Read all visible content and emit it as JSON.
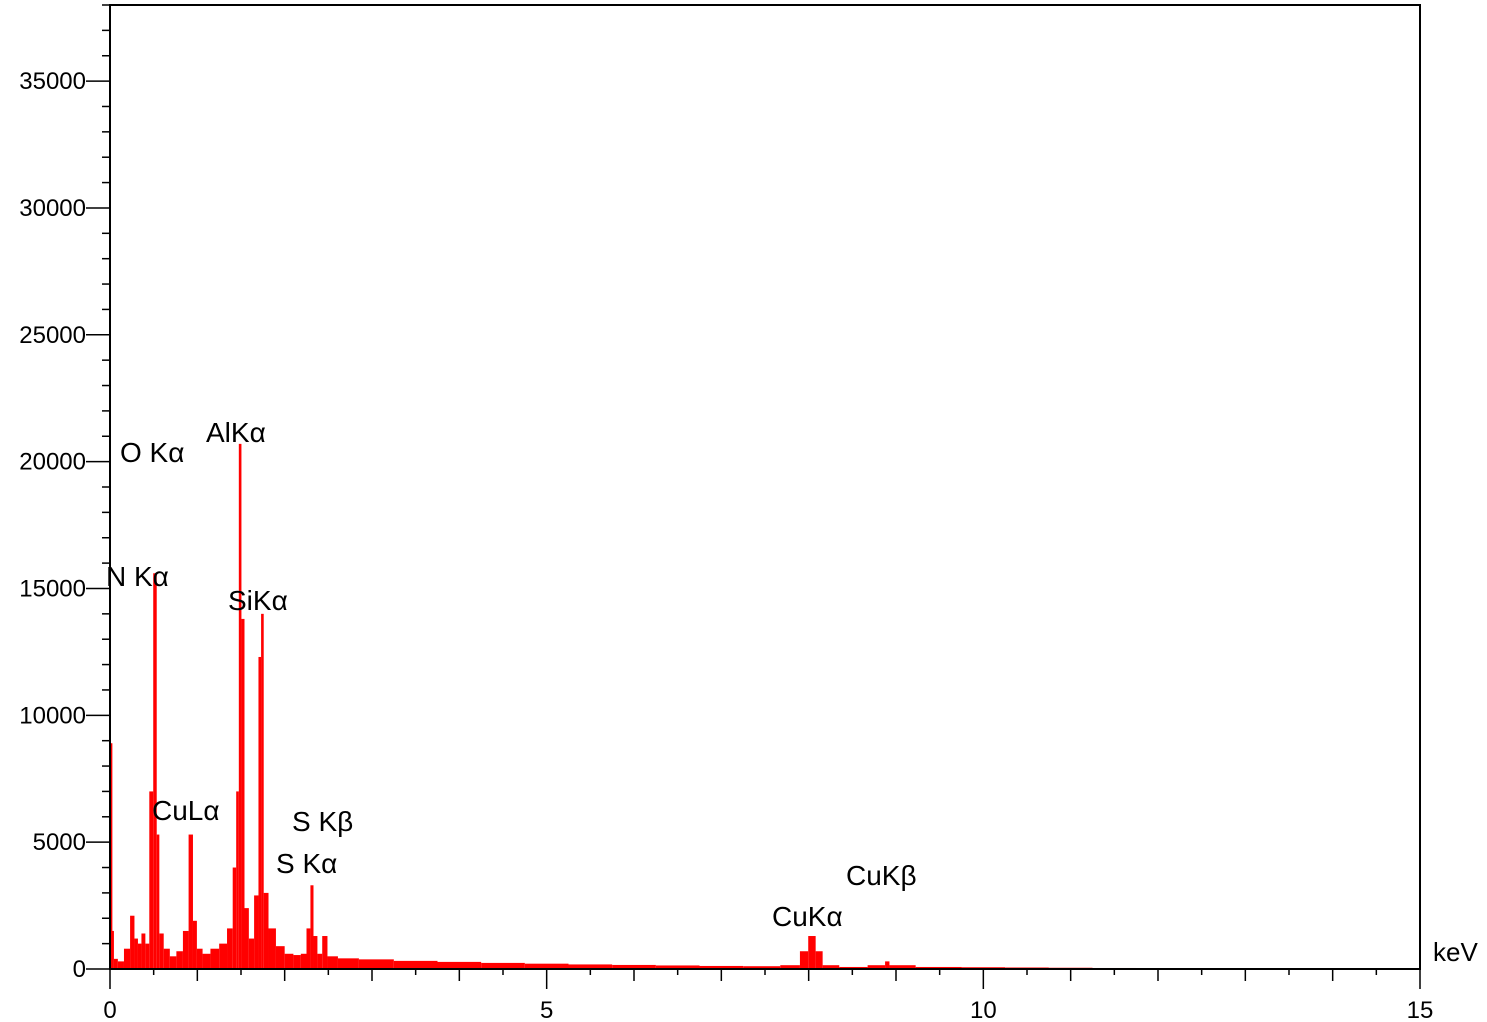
{
  "chart_data": {
    "type": "bar",
    "xlabel": "keV",
    "ylabel": "",
    "xlim": [
      0,
      15
    ],
    "ylim": [
      0,
      38000
    ],
    "x_ticks": [
      "0",
      "5",
      "10",
      "15"
    ],
    "y_ticks": [
      "0",
      "5000",
      "10000",
      "15000",
      "20000",
      "25000",
      "30000",
      "35000"
    ],
    "grid": false,
    "color": "#ff0000",
    "peaks": [
      {
        "label": "N Kα",
        "x": 0.52,
        "value": 15600
      },
      {
        "label": "O Kα",
        "x": 0.53,
        "value": 5500
      },
      {
        "label": "CuLα",
        "x": 0.93,
        "value": 5300
      },
      {
        "label": "AlKα",
        "x": 1.49,
        "value": 20700
      },
      {
        "label": "SiKα",
        "x": 1.74,
        "value": 14000
      },
      {
        "label": "S Kα",
        "x": 2.31,
        "value": 3300
      },
      {
        "label": "S Kβ",
        "x": 2.46,
        "value": 1300
      },
      {
        "label": "CuKα",
        "x": 8.04,
        "value": 1300
      },
      {
        "label": "CuKβ",
        "x": 8.9,
        "value": 300
      }
    ],
    "spectrum": [
      [
        0.01,
        8900
      ],
      [
        0.03,
        1500
      ],
      [
        0.06,
        400
      ],
      [
        0.12,
        300
      ],
      [
        0.2,
        800
      ],
      [
        0.26,
        2100
      ],
      [
        0.3,
        1200
      ],
      [
        0.34,
        1000
      ],
      [
        0.38,
        1400
      ],
      [
        0.43,
        1000
      ],
      [
        0.47,
        7000
      ],
      [
        0.52,
        15600
      ],
      [
        0.55,
        5300
      ],
      [
        0.58,
        1400
      ],
      [
        0.65,
        800
      ],
      [
        0.72,
        500
      ],
      [
        0.8,
        700
      ],
      [
        0.87,
        1500
      ],
      [
        0.93,
        5300
      ],
      [
        0.97,
        1900
      ],
      [
        1.02,
        800
      ],
      [
        1.1,
        600
      ],
      [
        1.2,
        800
      ],
      [
        1.3,
        1000
      ],
      [
        1.38,
        1600
      ],
      [
        1.43,
        4000
      ],
      [
        1.46,
        7000
      ],
      [
        1.49,
        20700
      ],
      [
        1.52,
        13800
      ],
      [
        1.56,
        2400
      ],
      [
        1.62,
        1200
      ],
      [
        1.68,
        2900
      ],
      [
        1.72,
        12300
      ],
      [
        1.74,
        14000
      ],
      [
        1.78,
        3000
      ],
      [
        1.85,
        1600
      ],
      [
        1.95,
        900
      ],
      [
        2.05,
        600
      ],
      [
        2.15,
        550
      ],
      [
        2.22,
        600
      ],
      [
        2.28,
        1600
      ],
      [
        2.31,
        3300
      ],
      [
        2.35,
        1300
      ],
      [
        2.4,
        600
      ],
      [
        2.46,
        1300
      ],
      [
        2.52,
        500
      ],
      [
        2.7,
        420
      ],
      [
        3.0,
        380
      ],
      [
        3.5,
        320
      ],
      [
        4.0,
        280
      ],
      [
        4.5,
        240
      ],
      [
        5.0,
        210
      ],
      [
        5.5,
        180
      ],
      [
        6.0,
        160
      ],
      [
        6.5,
        140
      ],
      [
        7.0,
        120
      ],
      [
        7.5,
        110
      ],
      [
        7.85,
        150
      ],
      [
        7.95,
        700
      ],
      [
        8.04,
        1300
      ],
      [
        8.12,
        700
      ],
      [
        8.2,
        150
      ],
      [
        8.5,
        80
      ],
      [
        8.85,
        150
      ],
      [
        8.9,
        300
      ],
      [
        8.95,
        150
      ],
      [
        9.5,
        80
      ],
      [
        10.0,
        70
      ],
      [
        10.5,
        60
      ],
      [
        11.0,
        50
      ],
      [
        11.5,
        40
      ],
      [
        12.0,
        30
      ],
      [
        12.5,
        20
      ],
      [
        12.8,
        10
      ],
      [
        13.0,
        0
      ]
    ]
  }
}
